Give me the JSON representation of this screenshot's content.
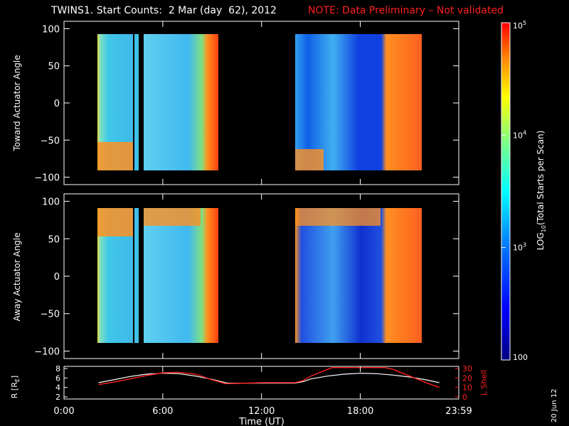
{
  "title": "TWINS1. Start Counts:  2 Mar (day  62), 2012",
  "note": "NOTE: Data Preliminary – Not validated",
  "date_stamp": "20 Jun 12",
  "colors": {
    "background": "#000000",
    "axes": "#ffffff",
    "note": "#ff2020",
    "l_shell": "#ff2020",
    "r_trace": "#ffffff"
  },
  "chart_data": [
    {
      "type": "heatmap",
      "ylabel": "Toward Actuator Angle",
      "ylim": [
        -110,
        110
      ],
      "yticks": [
        -100,
        -50,
        0,
        50,
        100
      ],
      "ytick_labels": [
        "−100",
        "−50",
        "0",
        "50",
        "100"
      ],
      "data_x_ranges_hours": [
        [
          2.1,
          4.6
        ],
        [
          4.7,
          4.95
        ],
        [
          5.3,
          9.9
        ],
        [
          14.6,
          22.8
        ]
      ],
      "data_y_range": [
        -90,
        90
      ],
      "note_pattern": "low-to-mid counts (cyan/blue) across angles, high counts (red/orange) near -90 deg early, and after ~19:30 UT"
    },
    {
      "type": "heatmap",
      "ylabel": "Away Actuator Angle",
      "ylim": [
        -110,
        110
      ],
      "yticks": [
        -100,
        -50,
        0,
        50,
        100
      ],
      "ytick_labels": [
        "−100",
        "−50",
        "0",
        "50",
        "100"
      ],
      "data_x_ranges_hours": [
        [
          2.1,
          4.6
        ],
        [
          4.7,
          4.95
        ],
        [
          5.3,
          9.9
        ],
        [
          14.6,
          22.8
        ]
      ],
      "data_y_range": [
        -90,
        90
      ],
      "note_pattern": "high counts near +90 deg early; blue low counts 15-19 UT; high counts after ~19:30 UT"
    },
    {
      "type": "line",
      "ylabel_left": "R [R",
      "ylabel_left_sub": "E",
      "ylabel_left_end": "]",
      "ylabel_right": "L Shell",
      "ylim_left": [
        2,
        8
      ],
      "yticks_left": [
        "2",
        "4",
        "6",
        "8"
      ],
      "ylim_right": [
        0,
        30
      ],
      "yticks_right": [
        "0",
        "10",
        "20",
        "30"
      ],
      "series": [
        {
          "name": "R",
          "axis": "left",
          "x": [
            2.1,
            3,
            4,
            5,
            6,
            7,
            8,
            9,
            9.8,
            10,
            12,
            14,
            14.5,
            15,
            16,
            17,
            18,
            19,
            20,
            21,
            22,
            22.8
          ],
          "y": [
            5.0,
            5.6,
            6.3,
            6.8,
            7.0,
            6.9,
            6.4,
            5.7,
            5.0,
            4.9,
            4.9,
            4.9,
            5.2,
            5.8,
            6.4,
            6.8,
            7.0,
            6.9,
            6.6,
            6.2,
            5.6,
            5.0
          ]
        },
        {
          "name": "L Shell",
          "axis": "right",
          "x": [
            2.1,
            3,
            4,
            5,
            6,
            7,
            8,
            9,
            9.8,
            10,
            12,
            14,
            14.5,
            15,
            16,
            16.3,
            19.5,
            20,
            21,
            22,
            22.8
          ],
          "y": [
            13,
            15.5,
            19,
            22.5,
            25.5,
            26,
            24,
            18,
            14,
            14,
            15,
            15,
            17,
            22,
            29,
            31,
            31,
            29,
            22,
            15,
            10
          ]
        }
      ]
    }
  ],
  "xaxis": {
    "label": "Time (UT)",
    "ticks": [
      {
        "hour": 0,
        "label": "0:00"
      },
      {
        "hour": 6,
        "label": "6:00"
      },
      {
        "hour": 12,
        "label": "12:00"
      },
      {
        "hour": 18,
        "label": "18:00"
      },
      {
        "hour": 23.983,
        "label": "23:59"
      }
    ],
    "xlim": [
      0,
      23.983
    ]
  },
  "colorbar": {
    "label": "LOG",
    "label_sub": "10",
    "label_end": "(Total Starts per Scan)",
    "scale": "log",
    "range": [
      100,
      100000
    ],
    "ticks": [
      {
        "value": 100000,
        "label": "10",
        "sup": "5"
      },
      {
        "value": 10000,
        "label": "10",
        "sup": "4"
      },
      {
        "value": 1000,
        "label": "10",
        "sup": "3"
      },
      {
        "value": 100,
        "label": "100",
        "sup": ""
      }
    ]
  }
}
